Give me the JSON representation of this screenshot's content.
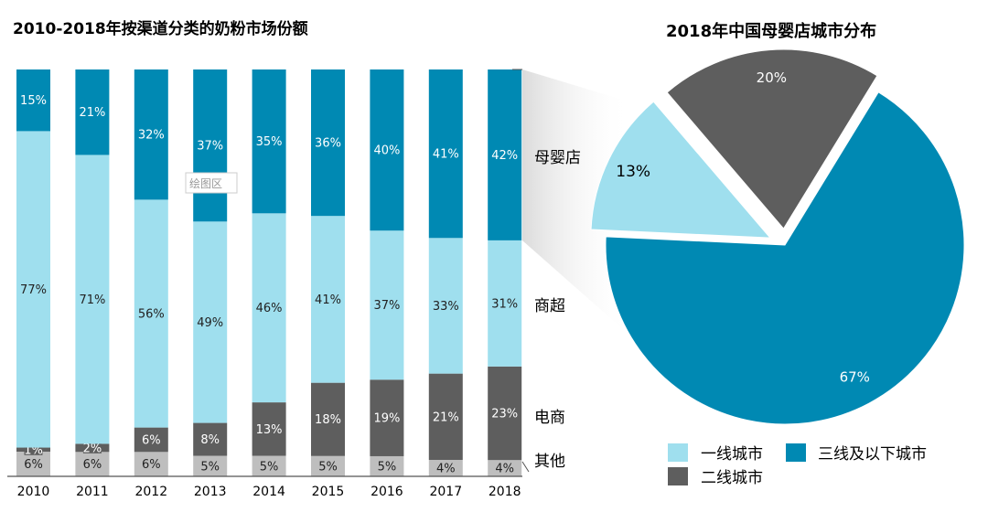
{
  "chart_data": [
    {
      "type": "bar",
      "stacked": "100%",
      "title": "2010-2018年按渠道分类的奶粉市场份额",
      "categories": [
        "2010",
        "2011",
        "2012",
        "2013",
        "2014",
        "2015",
        "2016",
        "2017",
        "2018"
      ],
      "series": [
        {
          "name": "其他",
          "color": "#BEBEBE",
          "values": [
            6,
            6,
            6,
            5,
            5,
            5,
            5,
            4,
            4
          ]
        },
        {
          "name": "电商",
          "color": "#5E5E5E",
          "values": [
            1,
            2,
            6,
            8,
            13,
            18,
            19,
            21,
            23
          ]
        },
        {
          "name": "商超",
          "color": "#9FDFEE",
          "values": [
            77,
            71,
            56,
            49,
            46,
            41,
            37,
            33,
            31
          ]
        },
        {
          "name": "母婴店",
          "color": "#0089B3",
          "values": [
            15,
            21,
            32,
            37,
            35,
            36,
            40,
            41,
            42
          ]
        }
      ],
      "value_suffix": "%",
      "ylim": [
        0,
        100
      ]
    },
    {
      "type": "pie",
      "title": "2018年中国母婴店城市分布",
      "slices": [
        {
          "name": "三线及以下城市",
          "value": 67,
          "color": "#0089B3",
          "label": "67%"
        },
        {
          "name": "一线城市",
          "value": 13,
          "color": "#9FDFEE",
          "label": "13%"
        },
        {
          "name": "二线城市",
          "value": 20,
          "color": "#5E5E5E",
          "label": "20%"
        }
      ],
      "legend": [
        "一线城市",
        "三线及以下城市",
        "二线城市"
      ]
    }
  ],
  "tooltip": "绘图区"
}
